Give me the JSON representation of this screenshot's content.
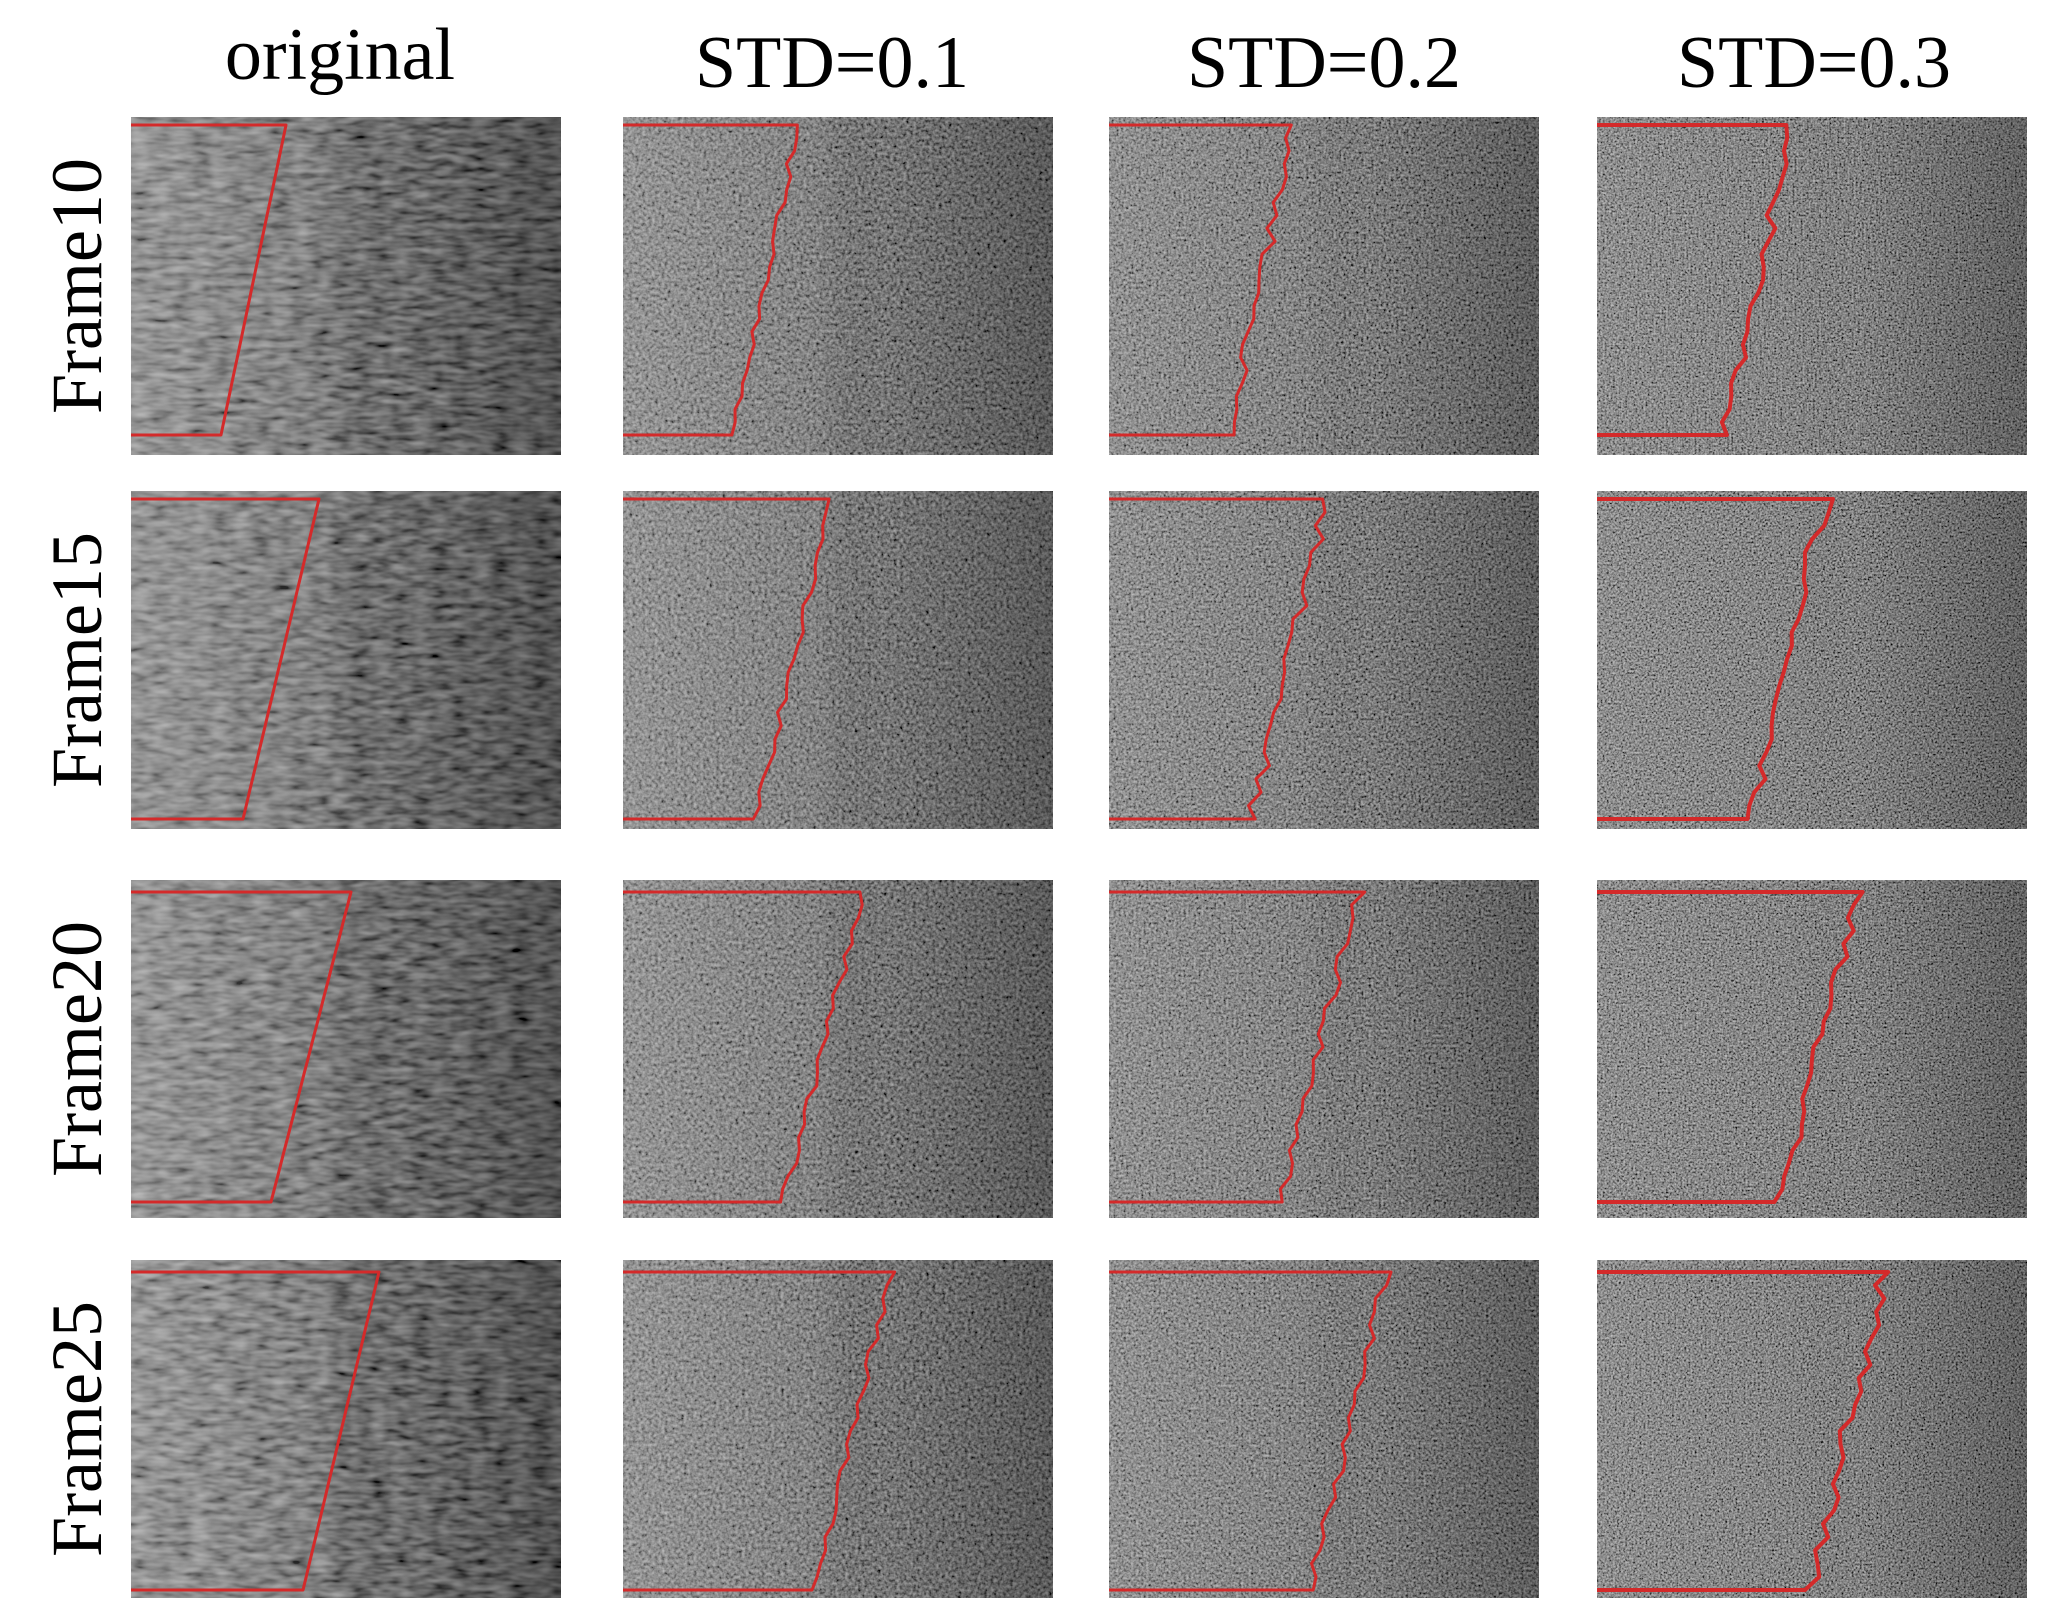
{
  "columns": [
    "original",
    "STD=0.1",
    "STD=0.2",
    "STD=0.3"
  ],
  "rows": [
    "Frame10",
    "Frame15",
    "Frame20",
    "Frame25"
  ],
  "colors": {
    "background": "#ffffff",
    "contour": "#d42a2a",
    "text": "#000000"
  },
  "panel_content": "grayscale ultrasound image with red traced contour",
  "noise_std": [
    0,
    0.1,
    0.2,
    0.3
  ]
}
